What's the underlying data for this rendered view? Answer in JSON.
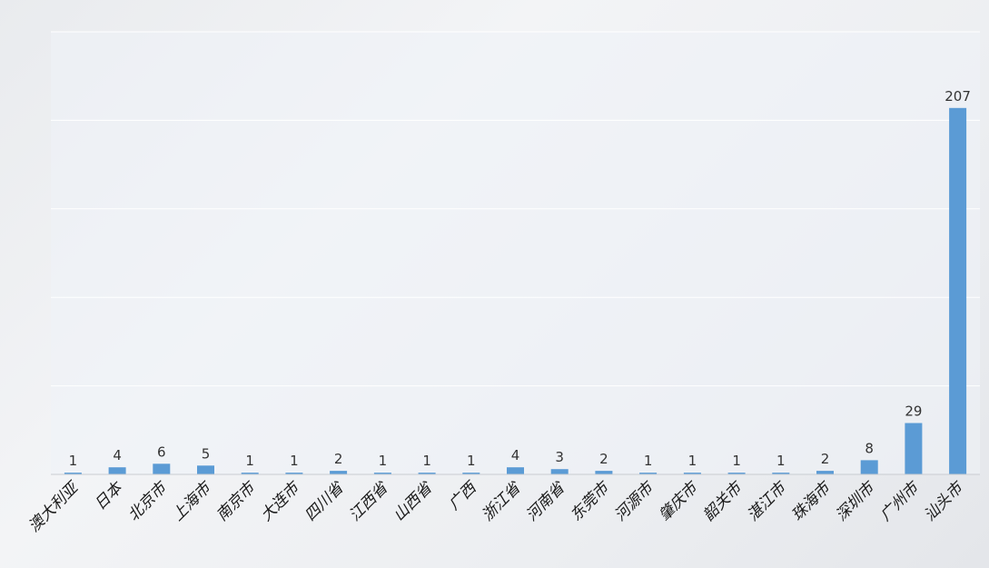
{
  "chart_data": {
    "type": "bar",
    "categories": [
      "澳大利亚",
      "日本",
      "北京市",
      "上海市",
      "南京市",
      "大连市",
      "四川省",
      "江西省",
      "山西省",
      "广西",
      "浙江省",
      "河南省",
      "东莞市",
      "河源市",
      "肇庆市",
      "韶关市",
      "湛江市",
      "珠海市",
      "深圳市",
      "广州市",
      "汕头市"
    ],
    "values": [
      1,
      4,
      6,
      5,
      1,
      1,
      2,
      1,
      1,
      1,
      4,
      3,
      2,
      1,
      1,
      1,
      1,
      2,
      8,
      29,
      207
    ],
    "ylim": [
      0,
      250
    ],
    "grid": true,
    "legend": "none",
    "colors": {
      "bar": "#5b9bd5"
    }
  }
}
